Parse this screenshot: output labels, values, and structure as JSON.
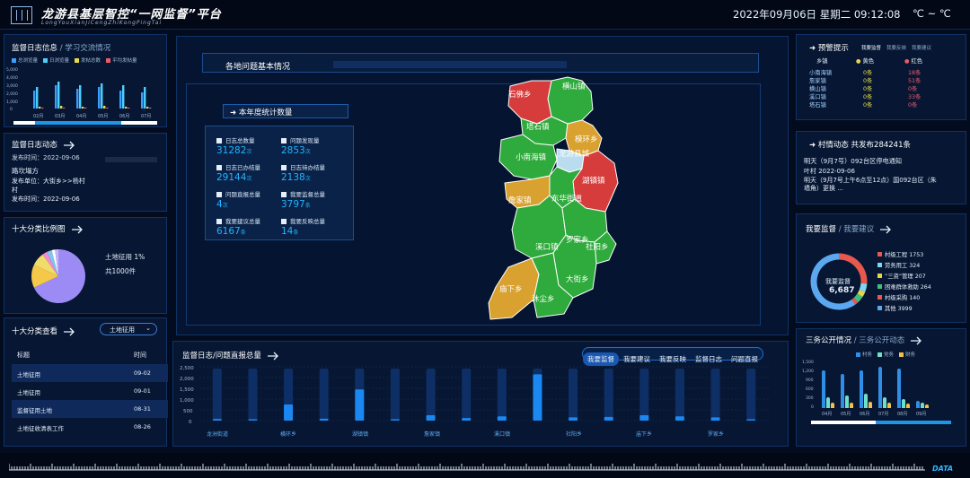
{
  "header": {
    "title": "龙游县基层智控“一网监督”平台",
    "subtitle": "LongYouXianJiCengZhiKongPingTai",
    "datetime": "2022年09月06日  星期二  09:12:08",
    "weather": "℃ ~ ℃"
  },
  "log_panel": {
    "title": "监督日志信息",
    "tab2": "学习交流情况",
    "legend": [
      "总浏览量",
      "日浏览量",
      "发帖总数",
      "平均发帖量"
    ],
    "colors": [
      "#3aa0ff",
      "#4ad0ff",
      "#e6d94c",
      "#e85b6a"
    ],
    "months": [
      "02月",
      "03月",
      "04月",
      "05月",
      "06月",
      "07月"
    ],
    "yticks": [
      "5,000",
      "4,000",
      "3,000",
      "2,000",
      "1,000",
      "0"
    ]
  },
  "dyn_panel": {
    "title": "监督日志动态",
    "lines": [
      "发布时间：2022-09-06",
      "路坎塌方",
      "发布单位：大街乡>>杨村",
      "村",
      "发布时间：2022-09-06"
    ]
  },
  "cat_panel": {
    "title": "十大分类比例图",
    "label1": "土地征用  1%",
    "label2": "共1000件",
    "slices": [
      {
        "value": 68,
        "color": "#9d8bf5"
      },
      {
        "value": 14,
        "color": "#f5c84a"
      },
      {
        "value": 8,
        "color": "#f0dc68"
      },
      {
        "value": 3,
        "color": "#f08bd4"
      },
      {
        "value": 3,
        "color": "#7fc7f2"
      },
      {
        "value": 2,
        "color": "#ffffff"
      },
      {
        "value": 2,
        "color": "#c9b3f7"
      }
    ]
  },
  "cat_list": {
    "title": "十大分类查看",
    "select": "土地征用",
    "col_title": "标题",
    "col_time": "时间",
    "rows": [
      {
        "title": "土地征用",
        "time": "09-02"
      },
      {
        "title": "土地征用",
        "time": "09-01"
      },
      {
        "title": "监督征用土地",
        "time": "08-31"
      },
      {
        "title": "土地征收清表工作",
        "time": "08-26"
      }
    ]
  },
  "center": {
    "title": "各地问题基本情况",
    "stat_title": "本年度统计数量",
    "stats": [
      {
        "label": "日志总数量",
        "value": "31282",
        "unit": "次"
      },
      {
        "label": "问题发现量",
        "value": "2853",
        "unit": "次"
      },
      {
        "label": "日志已办结量",
        "value": "29144",
        "unit": "次"
      },
      {
        "label": "日志待办结量",
        "value": "2138",
        "unit": "次"
      },
      {
        "label": "问题直报总量",
        "value": "4",
        "unit": "次"
      },
      {
        "label": "我要监督总量",
        "value": "3797",
        "unit": "条"
      },
      {
        "label": "我要建议总量",
        "value": "6167",
        "unit": "条"
      },
      {
        "label": "我要反映总量",
        "value": "14",
        "unit": "条"
      }
    ],
    "map_labels": [
      "横山镇",
      "石佛乡",
      "塔石镇",
      "模环乡",
      "小南海镇",
      "龙游县城",
      "湖镇镇",
      "詹家镇",
      "东华街道",
      "罗家乡",
      "溪口镇",
      "社阳乡",
      "大街乡",
      "庙下乡",
      "沐尘乡"
    ]
  },
  "bottom_chart": {
    "title": "监督日志/问题直报总量",
    "tabs": [
      "我要监督",
      "我要建议",
      "我要反映",
      "监督日志",
      "问题直报"
    ],
    "yticks": [
      "2,500",
      "2,000",
      "1,500",
      "1,000",
      "500",
      "0"
    ],
    "xlabels": [
      "龙洲街道",
      "横环乡",
      "湖镇镇",
      "詹家镇",
      "溪口镇",
      "社阳乡",
      "庙下乡",
      "罗家乡"
    ]
  },
  "chart_data": {
    "type": "bar",
    "title": "监督日志/问题直报总量",
    "categories": [
      "龙洲街道",
      "",
      "横环乡",
      "",
      "湖镇镇",
      "",
      "詹家镇",
      "",
      "溪口镇",
      "",
      "社阳乡",
      "",
      "庙下乡",
      "",
      "罗家乡",
      ""
    ],
    "values": [
      80,
      60,
      750,
      90,
      1450,
      60,
      250,
      120,
      200,
      2150,
      150,
      170,
      250,
      200,
      150,
      60
    ],
    "ylim": [
      0,
      2500
    ],
    "xlabel": "",
    "ylabel": "",
    "grid": true
  },
  "warn": {
    "title": "预警提示",
    "tabs": [
      "我要监督",
      "我要反映",
      "我要建议"
    ],
    "col_town": "乡镇",
    "col_yellow": "黄色",
    "col_red": "红色",
    "rows": [
      {
        "town": "小南海镇",
        "yellow": "0条",
        "red": "18条"
      },
      {
        "town": "詹家镇",
        "yellow": "0条",
        "red": "51条"
      },
      {
        "town": "横山镇",
        "yellow": "0条",
        "red": "0条"
      },
      {
        "town": "溪口镇",
        "yellow": "0条",
        "red": "33条"
      },
      {
        "town": "塔石镇",
        "yellow": "0条",
        "red": "0条"
      }
    ]
  },
  "village": {
    "title": "村情动态",
    "count": "共发布284241条",
    "item1": "明天（9月7号）092台区停电通知",
    "item1_sub": "叶村 2022-09-06",
    "item2": "明天（9月7号上午6点至12点）国092台区（朱墙角）更换 ..."
  },
  "donut": {
    "title": "我要监督",
    "tab2": "我要建议",
    "center_label": "我要监督",
    "center_value": "6,687",
    "items": [
      {
        "name": "村级工程",
        "value": "1753",
        "color": "#e8584e"
      },
      {
        "name": "劳务用工",
        "value": "324",
        "color": "#7fd4f0"
      },
      {
        "name": "“三资”管理",
        "value": "207",
        "color": "#e8d34a"
      },
      {
        "name": "困难群体救助",
        "value": "264",
        "color": "#3fbf7f"
      },
      {
        "name": "村级采购",
        "value": "140",
        "color": "#e8584e"
      },
      {
        "name": "其他",
        "value": "3999",
        "color": "#5ba8f0"
      }
    ]
  },
  "sanwu": {
    "title": "三务公开情况",
    "tab2": "三务公开动态",
    "legend": [
      "村务",
      "党务",
      "财务"
    ],
    "colors": [
      "#2f8fe8",
      "#6fe0c8",
      "#f2c14a"
    ],
    "months": [
      "04月",
      "05月",
      "06月",
      "07月",
      "08月",
      "09月"
    ],
    "yticks": [
      "1,500",
      "1,200",
      "900",
      "600",
      "300",
      "0"
    ]
  },
  "footer": {
    "brand": "DATA"
  }
}
